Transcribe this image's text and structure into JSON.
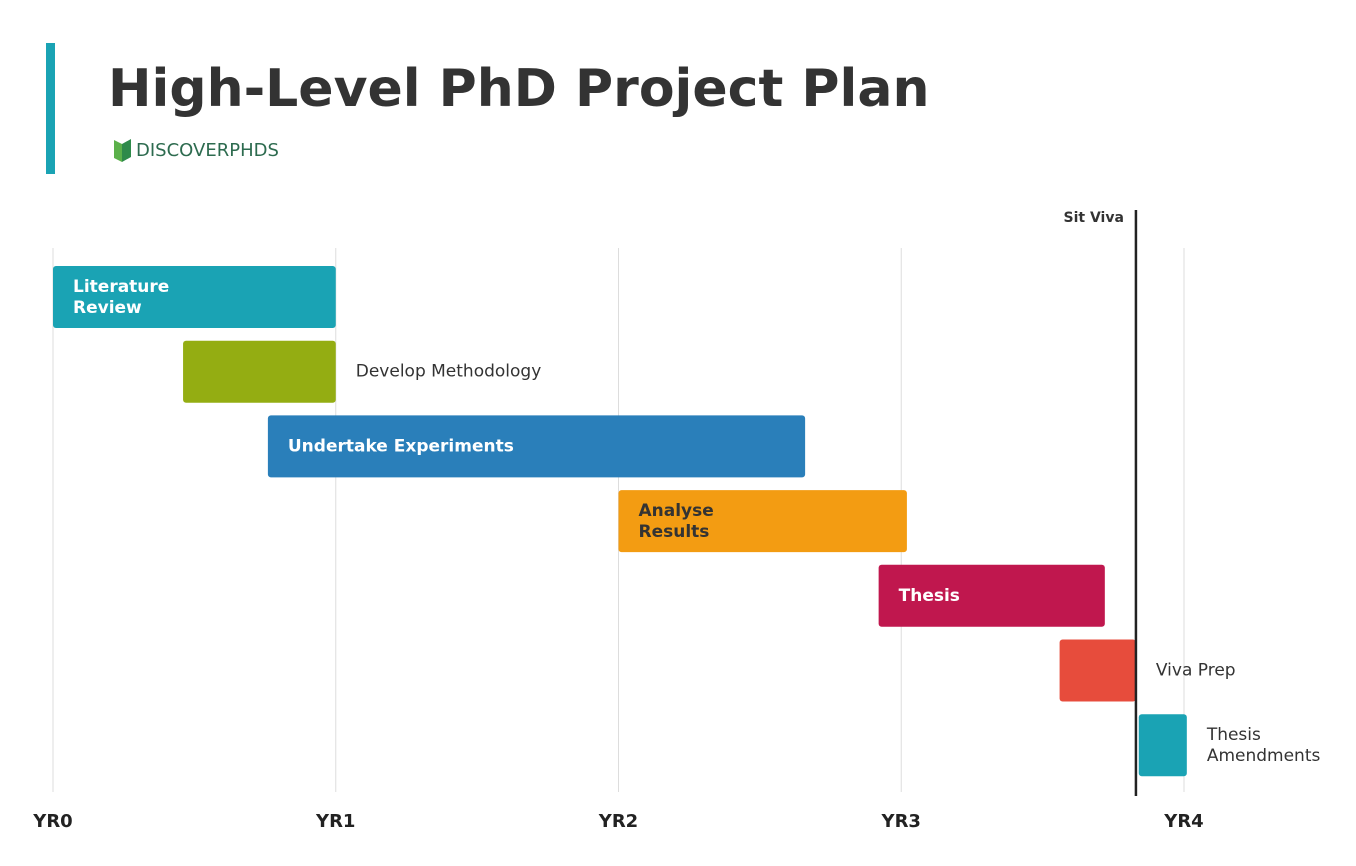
{
  "chart_data": {
    "type": "gantt",
    "title": "High-Level PhD Project Plan",
    "brand": "DISCOVERPHDS",
    "tasks": [
      {
        "name": "Literature Review",
        "start": 0,
        "end": 1.0,
        "color": "#1aa3b4",
        "label_color": "#ffffff"
      },
      {
        "name": "Develop Methodology",
        "start": 0.46,
        "end": 1.0,
        "color": "#94ad12",
        "label_color": "#333333"
      },
      {
        "name": "Undertake Experiments",
        "start": 0.76,
        "end": 2.66,
        "color": "#2a7fba",
        "label_color": "#ffffff"
      },
      {
        "name": "Analyse Results",
        "start": 2.0,
        "end": 3.02,
        "color": "#f39c12",
        "label_color": "#333333"
      },
      {
        "name": "Thesis",
        "start": 2.92,
        "end": 3.72,
        "color": "#c0174e",
        "label_color": "#ffffff"
      },
      {
        "name": "Viva Prep",
        "start": 3.56,
        "end": 3.83,
        "color": "#e74c3c",
        "label_color": "#333333"
      },
      {
        "name": "Thesis Amendments",
        "start": 3.84,
        "end": 4.01,
        "color": "#1aa3b4",
        "label_color": "#333333"
      }
    ],
    "markers": [
      {
        "label": "Sit Viva",
        "value": 3.83,
        "color": "#222222"
      }
    ],
    "xlim": [
      0,
      4
    ],
    "xticks": [
      {
        "value": 0,
        "label": "YR0"
      },
      {
        "value": 1,
        "label": "YR1"
      },
      {
        "value": 2,
        "label": "YR2"
      },
      {
        "value": 3,
        "label": "YR3"
      },
      {
        "value": 4,
        "label": "YR4"
      }
    ],
    "grid": true
  }
}
